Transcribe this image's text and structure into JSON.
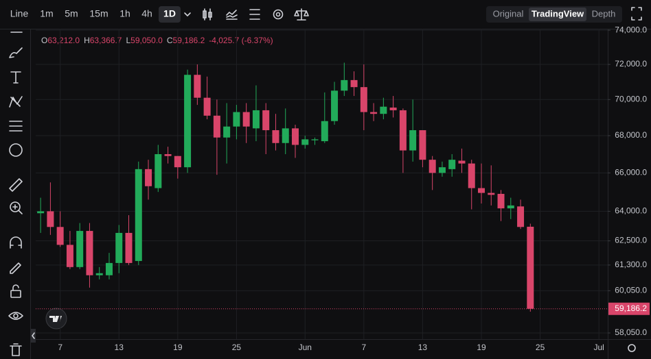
{
  "toolbar": {
    "intervals": [
      "Line",
      "1m",
      "5m",
      "15m",
      "1h",
      "4h",
      "1D"
    ],
    "views": [
      "Original",
      "TradingView",
      "Depth"
    ]
  },
  "chart_data": {
    "type": "candlestick",
    "ohlc": [
      {
        "label": "O",
        "value": "63,212.0"
      },
      {
        "label": "H",
        "value": "63,366.7"
      },
      {
        "label": "L",
        "value": "59,050.0"
      },
      {
        "label": "C",
        "value": "59,186.2"
      }
    ],
    "change": "-4,025.7 (-6.37%)",
    "last_price_label": "59,186.2",
    "up_color": "#22ab5a",
    "down_color": "#d9456a",
    "log_scale": true,
    "grid": true,
    "xlim": [
      -0.5,
      57.9
    ],
    "xticks": [
      {
        "value": 2,
        "label": "7"
      },
      {
        "value": 8,
        "label": "13"
      },
      {
        "value": 14,
        "label": "19"
      },
      {
        "value": 20,
        "label": "25"
      },
      {
        "value": 27,
        "label": "Jun"
      },
      {
        "value": 33,
        "label": "7"
      },
      {
        "value": 39,
        "label": "13"
      },
      {
        "value": 45,
        "label": "19"
      },
      {
        "value": 51,
        "label": "25"
      },
      {
        "value": 57,
        "label": "Jul"
      }
    ],
    "ylim": [
      57764,
      74086
    ],
    "yticks": [
      {
        "value": 58050,
        "label": "58,050.0"
      },
      {
        "value": 60050,
        "label": "60,050.0"
      },
      {
        "value": 61300,
        "label": "61,300.0"
      },
      {
        "value": 62500,
        "label": "62,500.0"
      },
      {
        "value": 64000,
        "label": "64,000.0"
      },
      {
        "value": 66000,
        "label": "66,000.0"
      },
      {
        "value": 68000,
        "label": "68,000.0"
      },
      {
        "value": 70000,
        "label": "70,000.0"
      },
      {
        "value": 72000,
        "label": "72,000.0"
      },
      {
        "value": 74000,
        "label": "74,000.0"
      }
    ],
    "open": [
      63900,
      64000,
      63200,
      62300,
      61200,
      63000,
      60800,
      60800,
      61400,
      62900,
      61500,
      66200,
      65200,
      67000,
      66900,
      66300,
      71400,
      70100,
      69100,
      67900,
      68500,
      69300,
      68400,
      69400,
      68300,
      67600,
      68400,
      67500,
      67750,
      67700,
      68800,
      70500,
      71100,
      70700,
      69300,
      69200,
      69550,
      69400,
      67200,
      68300,
      66700,
      66000,
      66200,
      66650,
      66500,
      65200,
      64950,
      64900,
      64150,
      64250,
      63212
    ],
    "high": [
      64700,
      65500,
      64000,
      63000,
      63400,
      63400,
      61200,
      61900,
      63300,
      63800,
      66600,
      66700,
      67500,
      67400,
      66900,
      71700,
      72000,
      71300,
      70000,
      69800,
      69700,
      69800,
      70800,
      69800,
      69200,
      69500,
      68600,
      68000,
      67900,
      70400,
      71000,
      72100,
      71600,
      72000,
      69800,
      70100,
      70200,
      69500,
      70000,
      68300,
      66900,
      66600,
      67000,
      67300,
      66700,
      66500,
      66400,
      65100,
      64700,
      64600,
      63366.7
    ],
    "low": [
      62900,
      62800,
      62200,
      61100,
      61100,
      60200,
      60600,
      60600,
      60900,
      61300,
      61300,
      64600,
      65000,
      66500,
      65700,
      66000,
      69700,
      68900,
      65900,
      66500,
      67800,
      67600,
      67700,
      67000,
      67200,
      67000,
      66800,
      67300,
      67500,
      67600,
      68600,
      70200,
      70200,
      68300,
      68800,
      68900,
      69000,
      66000,
      66600,
      66300,
      65100,
      65800,
      65800,
      66000,
      64100,
      64400,
      64300,
      63500,
      63600,
      63100,
      59050
    ],
    "close": [
      64000,
      63200,
      62300,
      61200,
      63000,
      60800,
      60900,
      61400,
      62900,
      61400,
      66200,
      65300,
      67000,
      66900,
      66300,
      71400,
      70100,
      69100,
      67900,
      68500,
      69300,
      68500,
      69400,
      68300,
      67600,
      68400,
      67500,
      67800,
      67800,
      68800,
      70500,
      71100,
      70700,
      69300,
      69200,
      69600,
      69400,
      67200,
      68300,
      66700,
      66000,
      66300,
      66700,
      66500,
      65200,
      64950,
      64850,
      64150,
      64300,
      63200,
      59186.2
    ]
  }
}
